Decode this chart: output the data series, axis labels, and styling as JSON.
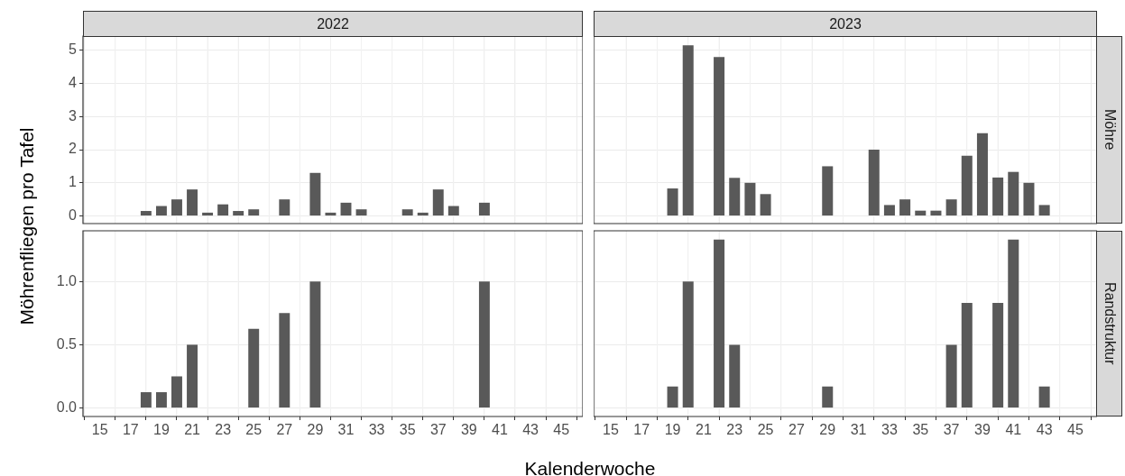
{
  "chart_data": [
    {
      "type": "bar",
      "title": "2022",
      "ylabel": "Möhrenfliegen pro Tafel",
      "color": "#595959",
      "grid": true,
      "tick_labels": "y",
      "x": [
        18,
        19,
        20,
        21,
        22,
        23,
        24,
        25,
        27,
        29,
        30,
        31,
        32,
        35,
        36,
        37,
        38,
        40
      ],
      "values": [
        0.15,
        0.3,
        0.5,
        0.8,
        0.1,
        0.35,
        0.15,
        0.2,
        0.5,
        1.3,
        0.1,
        0.4,
        0.2,
        0.2,
        0.1,
        0.8,
        0.3,
        0.4
      ],
      "xlim": [
        13.9,
        46.4
      ],
      "xticks": [
        15,
        17,
        19,
        21,
        23,
        25,
        27,
        29,
        31,
        33,
        35,
        37,
        39,
        41,
        43,
        45
      ],
      "ylim": [
        -0.23,
        5.43
      ],
      "yticks": [
        0,
        1,
        2,
        3,
        4,
        5
      ]
    },
    {
      "type": "bar",
      "title": "2023",
      "y2label": "Möhre",
      "color": "#595959",
      "grid": true,
      "tick_labels": false,
      "x": [
        19,
        20,
        22,
        23,
        24,
        25,
        29,
        32,
        33,
        34,
        35,
        36,
        37,
        38,
        39,
        40,
        41,
        42,
        43
      ],
      "values": [
        0.83,
        5.15,
        4.8,
        1.15,
        1.0,
        0.66,
        1.5,
        2.0,
        0.33,
        0.5,
        0.16,
        0.16,
        0.5,
        1.82,
        2.5,
        1.16,
        1.33,
        1.0,
        0.33
      ],
      "xlim": [
        13.9,
        46.4
      ],
      "xticks": [
        15,
        17,
        19,
        21,
        23,
        25,
        27,
        29,
        31,
        33,
        35,
        37,
        39,
        41,
        43,
        45
      ],
      "ylim": [
        -0.23,
        5.43
      ],
      "yticks": [
        0,
        1,
        2,
        3,
        4,
        5
      ]
    },
    {
      "type": "bar",
      "xlabel": "Kalenderwoche",
      "color": "#595959",
      "grid": true,
      "x": [
        18,
        19,
        20,
        21,
        25,
        27,
        29,
        40
      ],
      "values": [
        0.125,
        0.125,
        0.25,
        0.5,
        0.625,
        0.75,
        1.0,
        1.0
      ],
      "xlim": [
        13.9,
        46.4
      ],
      "xticks": [
        15,
        17,
        19,
        21,
        23,
        25,
        27,
        29,
        31,
        33,
        35,
        37,
        39,
        41,
        43,
        45
      ],
      "ylim": [
        -0.067,
        1.4
      ],
      "yticks": [
        {
          "value": 0,
          "label": "0.0"
        },
        {
          "value": 0.5,
          "label": "0.5"
        },
        {
          "value": 1,
          "label": "1.0"
        }
      ]
    },
    {
      "type": "bar",
      "y2label": "Randstruktur",
      "color": "#595959",
      "grid": true,
      "tick_labels": "x",
      "x": [
        19,
        20,
        22,
        23,
        29,
        37,
        38,
        40,
        41,
        43
      ],
      "values": [
        0.17,
        1.0,
        1.33,
        0.5,
        0.17,
        0.5,
        0.83,
        0.83,
        1.33,
        0.17
      ],
      "xlim": [
        13.9,
        46.4
      ],
      "xticks": [
        15,
        17,
        19,
        21,
        23,
        25,
        27,
        29,
        31,
        33,
        35,
        37,
        39,
        41,
        43,
        45
      ],
      "ylim": [
        -0.067,
        1.4
      ],
      "yticks": [
        0,
        0.5,
        1
      ]
    }
  ]
}
